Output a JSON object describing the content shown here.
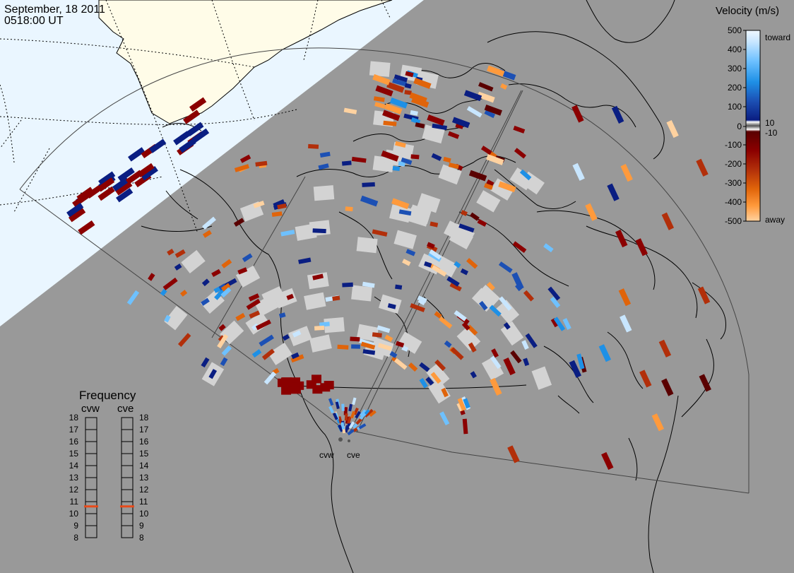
{
  "header": {
    "date": "September, 18 2011",
    "time": "0518:00 UT"
  },
  "velocity_legend": {
    "title": "Velocity (m/s)",
    "ticks": [
      "500",
      "400",
      "300",
      "200",
      "100",
      "10",
      "0",
      "-10",
      "-100",
      "-200",
      "-300",
      "-400",
      "-500"
    ],
    "toward_label": "toward",
    "away_label": "away"
  },
  "frequency_legend": {
    "title": "Frequency",
    "radars": [
      "cvw",
      "cve"
    ],
    "ticks": [
      "18",
      "17",
      "16",
      "15",
      "14",
      "13",
      "12",
      "11",
      "10",
      "9",
      "8"
    ],
    "selected": {
      "cvw": 10.6,
      "cve": 10.6
    }
  },
  "radar_sites": [
    "cvw",
    "cve"
  ],
  "colors": {
    "background": "#999999",
    "daylight": "#EAF6FF",
    "land_day": "#FFFCE8",
    "ground_scatter": "#D3D3D3",
    "selected_frequency": "#E84A1A",
    "scale": [
      "#F0F8FF",
      "#C8E6FF",
      "#6EC1FF",
      "#1E90E6",
      "#1C50B4",
      "#0A1E82",
      "#5A0000",
      "#8B0000",
      "#B22F0A",
      "#E0640A",
      "#FF9A3C",
      "#FFD2A0"
    ]
  }
}
